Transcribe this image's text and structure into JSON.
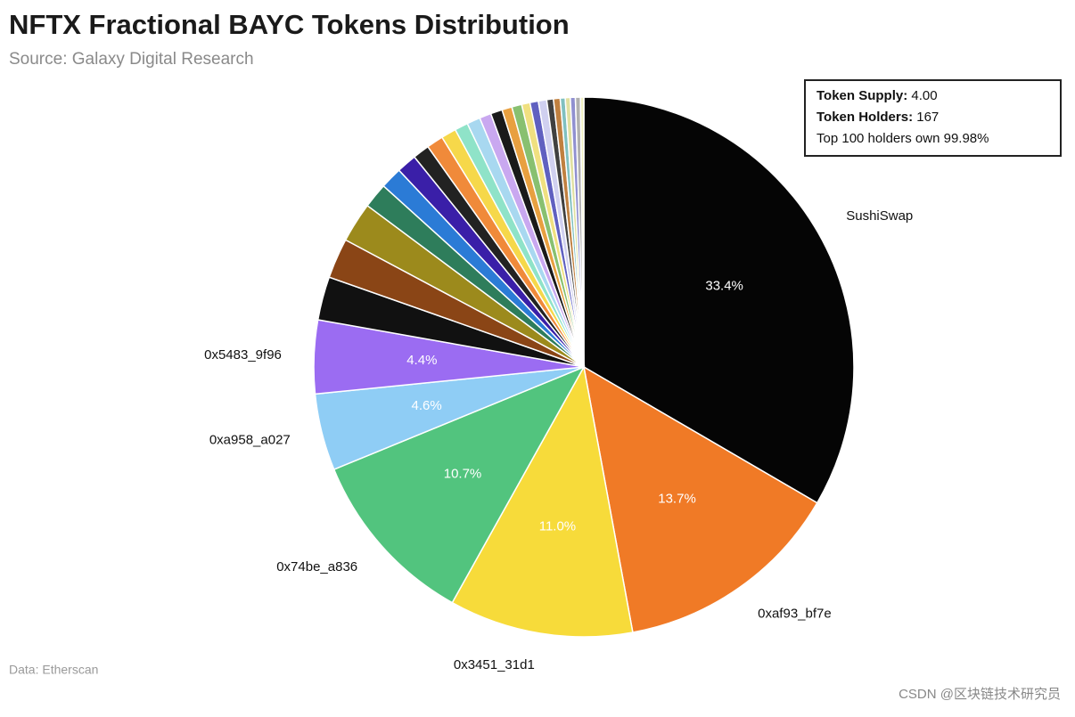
{
  "chart_data": {
    "type": "pie",
    "title": "NFTX Fractional BAYC Tokens Distribution",
    "subtitle": "Source: Galaxy Digital Research",
    "source": "Data: Etherscan",
    "watermark": "CSDN @区块链技术研究员",
    "info": [
      {
        "label": "Token Supply:",
        "value": "4.00"
      },
      {
        "label": "Token Holders:",
        "value": "167"
      },
      {
        "label": "Top 100 holders own 99.98%"
      }
    ],
    "categories": [
      "SushiSwap",
      "0xaf93_bf7e",
      "0x3451_31d1",
      "0x74be_a836",
      "0xa958_a027",
      "0x5483_9f96",
      null,
      null,
      null,
      null,
      null,
      null,
      null,
      null,
      null,
      null,
      null,
      null,
      null,
      null,
      null,
      null,
      null,
      null,
      null,
      null,
      null,
      null,
      null,
      null,
      null
    ],
    "values": [
      33.4,
      13.7,
      11.0,
      10.7,
      4.6,
      4.4,
      2.6,
      2.4,
      2.4,
      1.5,
      1.3,
      1.2,
      1.0,
      1.0,
      0.9,
      0.8,
      0.8,
      0.7,
      0.7,
      0.6,
      0.6,
      0.5,
      0.5,
      0.5,
      0.4,
      0.4,
      0.3,
      0.3,
      0.3,
      0.3,
      0.2
    ],
    "value_labels": [
      "33.4%",
      "13.7%",
      "11.0%",
      "10.7%",
      "4.6%",
      "4.4%",
      null,
      null,
      null,
      null,
      null,
      null,
      null,
      null,
      null,
      null,
      null,
      null,
      null,
      null,
      null,
      null,
      null,
      null,
      null,
      null,
      null,
      null,
      null,
      null,
      null
    ],
    "colors": [
      "#050505",
      "#f07a26",
      "#f7db3a",
      "#52c47e",
      "#8fcdf5",
      "#9b6cf2",
      "#111111",
      "#8a4516",
      "#9c8a1c",
      "#2e7d5b",
      "#2b7bd6",
      "#3a1fa8",
      "#222222",
      "#f08a3a",
      "#f6d84a",
      "#8fe3c8",
      "#a8d8f0",
      "#c9a8f0",
      "#1a1a1a",
      "#e8a040",
      "#88c070",
      "#f0e080",
      "#6060c0",
      "#d0d0f0",
      "#404040",
      "#c08040",
      "#80c0c0",
      "#e0e0a0",
      "#9090d0",
      "#b0b0b0",
      "#f0f0c0"
    ]
  }
}
